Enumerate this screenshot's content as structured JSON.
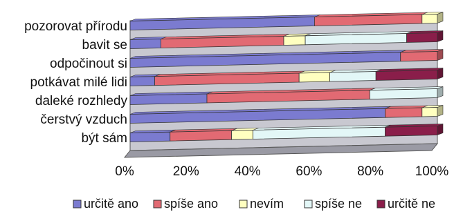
{
  "chart_data": {
    "type": "bar",
    "orientation": "horizontal",
    "stacked": "percent",
    "categories": [
      "pozorovat přírodu",
      "bavit se",
      "odpočinout si",
      "potkávat milé lidi",
      "daleké rozhledy",
      "čerstvý vzduch",
      "být sám"
    ],
    "series": [
      {
        "name": "určitě ano",
        "color": "#7b7bd0",
        "values": [
          60,
          10,
          88,
          8,
          25,
          83,
          13
        ]
      },
      {
        "name": "spíše ano",
        "color": "#e26a73",
        "values": [
          35,
          40,
          12,
          47,
          53,
          12,
          20
        ]
      },
      {
        "name": "nevím",
        "color": "#ffffc0",
        "values": [
          5,
          7,
          0,
          10,
          0,
          5,
          7
        ]
      },
      {
        "name": "spíše ne",
        "color": "#e3f7f7",
        "values": [
          0,
          33,
          0,
          15,
          22,
          0,
          43
        ]
      },
      {
        "name": "určitě ne",
        "color": "#8a1e4a",
        "values": [
          0,
          10,
          0,
          20,
          0,
          0,
          17
        ]
      }
    ],
    "xlim": [
      0,
      100
    ],
    "x_ticks": [
      "0%",
      "20%",
      "40%",
      "60%",
      "80%",
      "100%"
    ],
    "grid": false,
    "legend_position": "bottom",
    "wall_color": "#c8c8d0"
  }
}
